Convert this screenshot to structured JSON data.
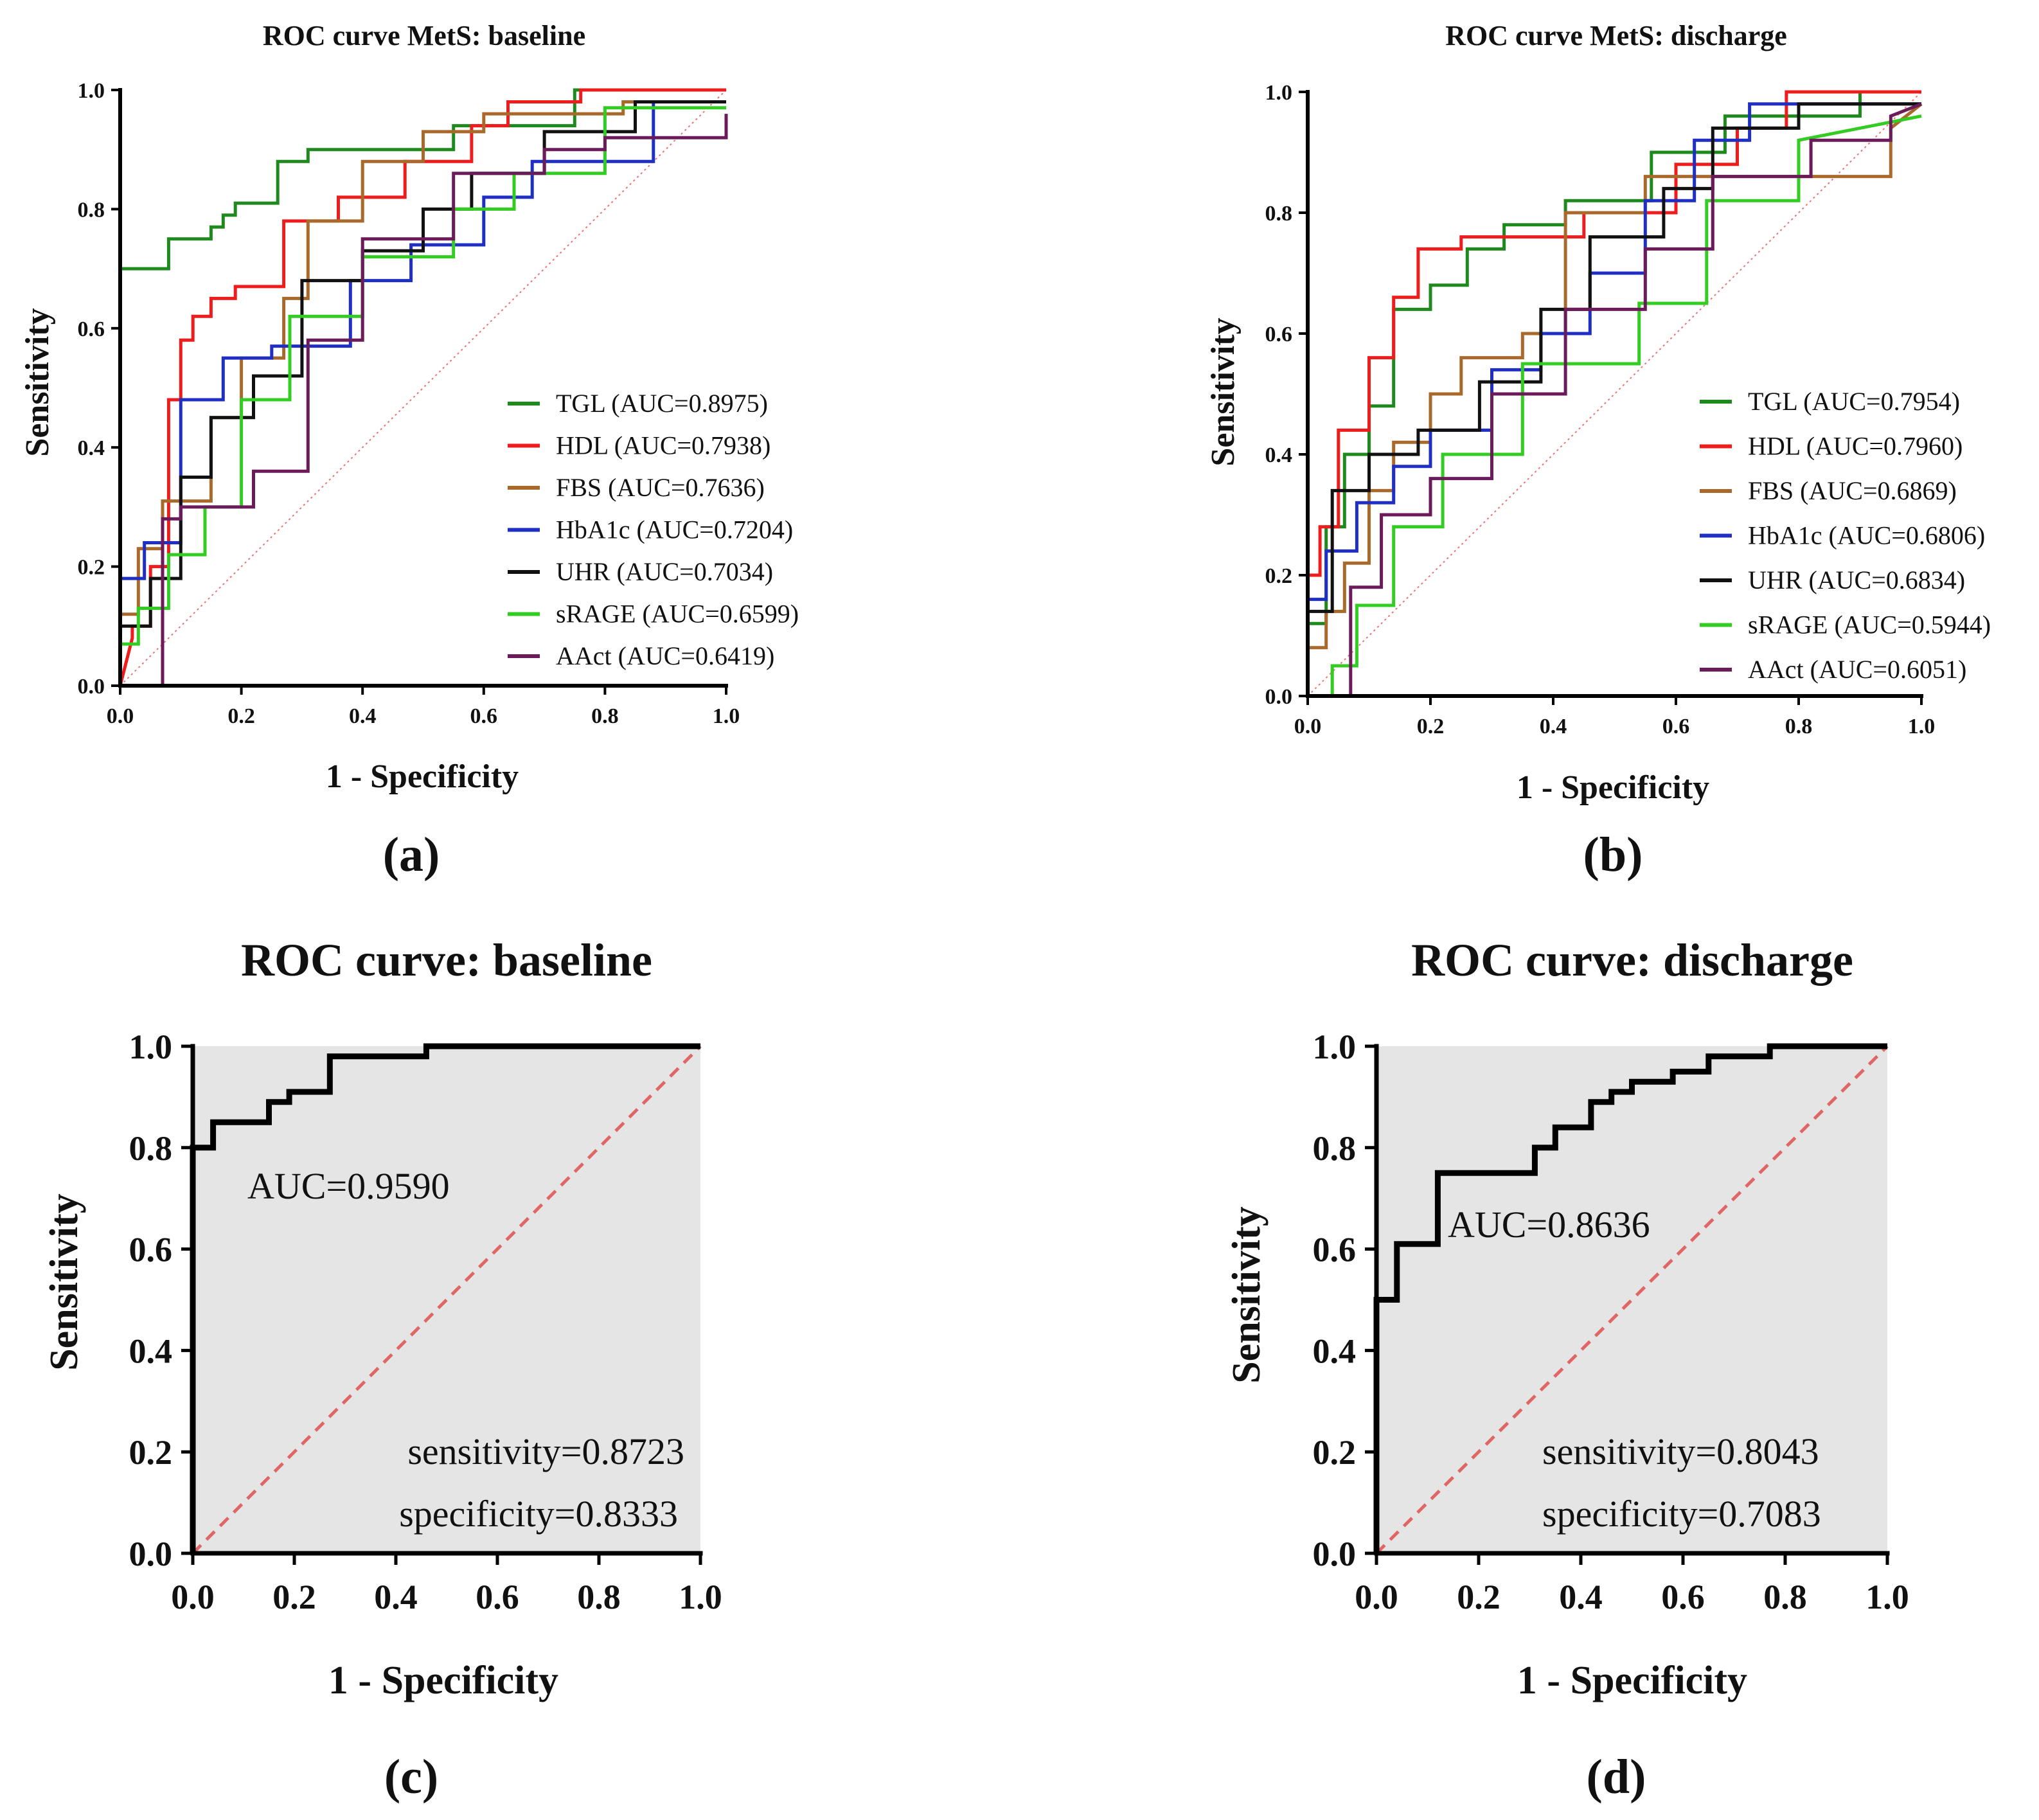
{
  "figure_letters": [
    "(a)",
    "(b)",
    "(c)",
    "(d)"
  ],
  "chart_data": [
    {
      "type": "line",
      "panel": "a",
      "title": "ROC curve MetS: baseline",
      "xlabel": "1 - Specificity",
      "ylabel": "Sensitivity",
      "xlim": [
        0,
        1
      ],
      "ylim": [
        0,
        1
      ],
      "xticks": [
        "0.0",
        "0.2",
        "0.4",
        "0.6",
        "0.8",
        "1.0"
      ],
      "yticks": [
        "0.0",
        "0.2",
        "0.4",
        "0.6",
        "0.8",
        "1.0"
      ],
      "diagonal_color": "#f07070",
      "legend_position": "right-center",
      "series": [
        {
          "name": "TGL (AUC=0.8975)",
          "color": "#1e8a1e",
          "x": [
            0,
            0,
            0,
            0.08,
            0.08,
            0.15,
            0.15,
            0.17,
            0.17,
            0.19,
            0.19,
            0.26,
            0.26,
            0.31,
            0.31,
            0.55,
            0.55,
            0.75,
            0.75,
            1.0
          ],
          "y": [
            0,
            0.7,
            0.7,
            0.7,
            0.75,
            0.75,
            0.77,
            0.77,
            0.79,
            0.79,
            0.81,
            0.81,
            0.88,
            0.88,
            0.9,
            0.9,
            0.94,
            0.94,
            1.0,
            1.0
          ]
        },
        {
          "name": "HDL (AUC=0.7938)",
          "color": "#ee1c1c",
          "x": [
            0,
            0.02,
            0.02,
            0.05,
            0.05,
            0.08,
            0.08,
            0.1,
            0.1,
            0.12,
            0.12,
            0.15,
            0.15,
            0.19,
            0.19,
            0.27,
            0.27,
            0.36,
            0.36,
            0.47,
            0.47,
            0.58,
            0.58,
            0.64,
            0.64,
            0.76,
            0.76,
            1.0
          ],
          "y": [
            0,
            0.08,
            0.1,
            0.1,
            0.2,
            0.2,
            0.48,
            0.48,
            0.58,
            0.58,
            0.62,
            0.62,
            0.65,
            0.65,
            0.67,
            0.67,
            0.78,
            0.78,
            0.82,
            0.82,
            0.88,
            0.88,
            0.94,
            0.94,
            0.98,
            0.98,
            1.0,
            1.0
          ]
        },
        {
          "name": "FBS (AUC=0.7636)",
          "color": "#a8692a",
          "x": [
            0,
            0,
            0.03,
            0.03,
            0.07,
            0.07,
            0.15,
            0.15,
            0.2,
            0.2,
            0.27,
            0.27,
            0.31,
            0.31,
            0.4,
            0.4,
            0.5,
            0.5,
            0.6,
            0.6,
            0.83,
            0.83,
            1.0
          ],
          "y": [
            0,
            0.12,
            0.12,
            0.23,
            0.23,
            0.31,
            0.31,
            0.45,
            0.45,
            0.55,
            0.55,
            0.65,
            0.65,
            0.78,
            0.78,
            0.88,
            0.88,
            0.93,
            0.93,
            0.96,
            0.96,
            0.98,
            0.98
          ]
        },
        {
          "name": "HbA1c (AUC=0.7204)",
          "color": "#1f2fc4",
          "x": [
            0,
            0,
            0.04,
            0.04,
            0.1,
            0.1,
            0.17,
            0.17,
            0.25,
            0.25,
            0.38,
            0.38,
            0.48,
            0.48,
            0.6,
            0.6,
            0.68,
            0.68,
            0.88,
            0.88,
            1.0
          ],
          "y": [
            0,
            0.18,
            0.18,
            0.24,
            0.24,
            0.48,
            0.48,
            0.55,
            0.55,
            0.57,
            0.57,
            0.68,
            0.68,
            0.74,
            0.74,
            0.82,
            0.82,
            0.88,
            0.88,
            0.98,
            0.98
          ]
        },
        {
          "name": "UHR (AUC=0.7034)",
          "color": "#111111",
          "x": [
            0,
            0,
            0.05,
            0.05,
            0.1,
            0.1,
            0.15,
            0.15,
            0.22,
            0.22,
            0.3,
            0.3,
            0.4,
            0.4,
            0.5,
            0.5,
            0.58,
            0.58,
            0.7,
            0.7,
            0.85,
            0.85,
            1.0
          ],
          "y": [
            0,
            0.1,
            0.1,
            0.18,
            0.18,
            0.35,
            0.35,
            0.45,
            0.45,
            0.52,
            0.52,
            0.68,
            0.68,
            0.73,
            0.73,
            0.8,
            0.8,
            0.86,
            0.86,
            0.93,
            0.93,
            0.98,
            0.98
          ]
        },
        {
          "name": "sRAGE (AUC=0.6599)",
          "color": "#33cc22",
          "x": [
            0,
            0,
            0.03,
            0.03,
            0.08,
            0.08,
            0.14,
            0.14,
            0.2,
            0.2,
            0.28,
            0.28,
            0.4,
            0.4,
            0.55,
            0.55,
            0.65,
            0.65,
            0.8,
            0.8,
            1.0
          ],
          "y": [
            0,
            0.07,
            0.07,
            0.13,
            0.13,
            0.22,
            0.22,
            0.3,
            0.3,
            0.48,
            0.48,
            0.62,
            0.62,
            0.72,
            0.72,
            0.8,
            0.8,
            0.86,
            0.86,
            0.97,
            0.97
          ]
        },
        {
          "name": "AAct (AUC=0.6419)",
          "color": "#6b1a5a",
          "x": [
            0.07,
            0.07,
            0.1,
            0.1,
            0.22,
            0.22,
            0.31,
            0.31,
            0.4,
            0.4,
            0.55,
            0.55,
            0.7,
            0.7,
            0.8,
            0.8,
            1.0,
            1.0
          ],
          "y": [
            0,
            0.28,
            0.28,
            0.3,
            0.3,
            0.36,
            0.36,
            0.58,
            0.58,
            0.75,
            0.75,
            0.86,
            0.86,
            0.9,
            0.9,
            0.92,
            0.92,
            0.96
          ]
        }
      ]
    },
    {
      "type": "line",
      "panel": "b",
      "title": "ROC curve MetS: discharge",
      "xlabel": "1 - Specificity",
      "ylabel": "Sensitivity",
      "xlim": [
        0,
        1
      ],
      "ylim": [
        0,
        1
      ],
      "xticks": [
        "0.0",
        "0.2",
        "0.4",
        "0.6",
        "0.8",
        "1.0"
      ],
      "yticks": [
        "0.0",
        "0.2",
        "0.4",
        "0.6",
        "0.8",
        "1.0"
      ],
      "diagonal_color": "#f07070",
      "legend_position": "right-center",
      "series": [
        {
          "name": "TGL (AUC=0.7954)",
          "color": "#1e8a1e",
          "x": [
            0,
            0,
            0.03,
            0.03,
            0.06,
            0.06,
            0.1,
            0.1,
            0.14,
            0.14,
            0.2,
            0.2,
            0.26,
            0.26,
            0.32,
            0.32,
            0.42,
            0.42,
            0.56,
            0.56,
            0.68,
            0.68,
            0.9,
            0.9,
            1.0
          ],
          "y": [
            0,
            0.12,
            0.12,
            0.28,
            0.28,
            0.4,
            0.4,
            0.48,
            0.48,
            0.64,
            0.64,
            0.68,
            0.68,
            0.74,
            0.74,
            0.78,
            0.78,
            0.82,
            0.82,
            0.9,
            0.9,
            0.96,
            0.96,
            1.0,
            1.0
          ]
        },
        {
          "name": "HDL (AUC=0.7960)",
          "color": "#ee1c1c",
          "x": [
            0,
            0,
            0.02,
            0.02,
            0.05,
            0.05,
            0.1,
            0.1,
            0.14,
            0.14,
            0.18,
            0.18,
            0.25,
            0.25,
            0.45,
            0.45,
            0.6,
            0.6,
            0.7,
            0.7,
            0.78,
            0.78,
            1.0
          ],
          "y": [
            0,
            0.2,
            0.2,
            0.28,
            0.28,
            0.44,
            0.44,
            0.56,
            0.56,
            0.66,
            0.66,
            0.74,
            0.74,
            0.76,
            0.76,
            0.8,
            0.8,
            0.88,
            0.88,
            0.94,
            0.94,
            1.0,
            1.0
          ]
        },
        {
          "name": "FBS (AUC=0.6869)",
          "color": "#a8692a",
          "x": [
            0,
            0,
            0.03,
            0.03,
            0.06,
            0.06,
            0.1,
            0.1,
            0.14,
            0.14,
            0.2,
            0.2,
            0.25,
            0.25,
            0.35,
            0.35,
            0.42,
            0.42,
            0.55,
            0.55,
            0.8,
            0.8,
            0.95,
            0.95,
            1.0
          ],
          "y": [
            0,
            0.08,
            0.08,
            0.14,
            0.14,
            0.22,
            0.22,
            0.34,
            0.34,
            0.42,
            0.42,
            0.5,
            0.5,
            0.56,
            0.56,
            0.6,
            0.6,
            0.8,
            0.8,
            0.86,
            0.86,
            0.86,
            0.86,
            0.94,
            0.98
          ]
        },
        {
          "name": "HbA1c (AUC=0.6806)",
          "color": "#1f2fc4",
          "x": [
            0,
            0,
            0.03,
            0.03,
            0.08,
            0.08,
            0.14,
            0.14,
            0.2,
            0.2,
            0.3,
            0.3,
            0.38,
            0.38,
            0.46,
            0.46,
            0.55,
            0.55,
            0.63,
            0.63,
            0.72,
            0.72,
            1.0
          ],
          "y": [
            0,
            0.16,
            0.16,
            0.24,
            0.24,
            0.32,
            0.32,
            0.38,
            0.38,
            0.44,
            0.44,
            0.54,
            0.54,
            0.6,
            0.6,
            0.7,
            0.7,
            0.82,
            0.82,
            0.92,
            0.92,
            0.98,
            0.98
          ]
        },
        {
          "name": "UHR (AUC=0.6834)",
          "color": "#111111",
          "x": [
            0,
            0,
            0.04,
            0.04,
            0.1,
            0.1,
            0.18,
            0.18,
            0.28,
            0.28,
            0.38,
            0.38,
            0.46,
            0.46,
            0.58,
            0.58,
            0.66,
            0.66,
            0.8,
            0.8,
            1.0
          ],
          "y": [
            0,
            0.14,
            0.14,
            0.34,
            0.34,
            0.4,
            0.4,
            0.44,
            0.44,
            0.52,
            0.52,
            0.64,
            0.64,
            0.76,
            0.76,
            0.84,
            0.84,
            0.94,
            0.94,
            0.98,
            0.98
          ]
        },
        {
          "name": "sRAGE (AUC=0.5944)",
          "color": "#33cc22",
          "x": [
            0,
            0,
            0.04,
            0.04,
            0.08,
            0.08,
            0.14,
            0.14,
            0.22,
            0.22,
            0.35,
            0.35,
            0.54,
            0.54,
            0.65,
            0.65,
            0.8,
            0.8,
            1.0
          ],
          "y": [
            0,
            0.0,
            0.0,
            0.05,
            0.05,
            0.15,
            0.15,
            0.28,
            0.28,
            0.4,
            0.4,
            0.55,
            0.55,
            0.65,
            0.65,
            0.82,
            0.82,
            0.92,
            0.96
          ]
        },
        {
          "name": "AAct (AUC=0.6051)",
          "color": "#6b1a5a",
          "x": [
            0.07,
            0.07,
            0.12,
            0.12,
            0.2,
            0.2,
            0.3,
            0.3,
            0.42,
            0.42,
            0.55,
            0.55,
            0.66,
            0.66,
            0.82,
            0.82,
            0.95,
            0.95,
            1.0
          ],
          "y": [
            0,
            0.18,
            0.18,
            0.3,
            0.3,
            0.36,
            0.36,
            0.5,
            0.5,
            0.64,
            0.64,
            0.74,
            0.74,
            0.86,
            0.86,
            0.92,
            0.92,
            0.96,
            0.98
          ]
        }
      ]
    },
    {
      "type": "line",
      "panel": "c",
      "title": "ROC curve:  baseline",
      "xlabel": "1 - Specificity",
      "ylabel": "Sensitivity",
      "xlim": [
        0,
        1
      ],
      "ylim": [
        0,
        1
      ],
      "xticks": [
        "0.0",
        "0.2",
        "0.4",
        "0.6",
        "0.8",
        "1.0"
      ],
      "yticks": [
        "0.0",
        "0.2",
        "0.4",
        "0.6",
        "0.8",
        "1.0"
      ],
      "fill_color": "#e5e5e5",
      "diagonal_color": "#e06666",
      "annotations": [
        "AUC=0.9590",
        "sensitivity=0.8723",
        "specificity=0.8333"
      ],
      "series": [
        {
          "name": "ROC",
          "color": "#000000",
          "x": [
            0,
            0,
            0.04,
            0.04,
            0.15,
            0.15,
            0.19,
            0.19,
            0.27,
            0.27,
            0.46,
            0.46,
            1.0
          ],
          "y": [
            0,
            0.8,
            0.8,
            0.85,
            0.85,
            0.89,
            0.89,
            0.91,
            0.91,
            0.98,
            0.98,
            1.0,
            1.0
          ]
        }
      ]
    },
    {
      "type": "line",
      "panel": "d",
      "title": "ROC curve:  discharge",
      "xlabel": "1 - Specificity",
      "ylabel": "Sensitivity",
      "xlim": [
        0,
        1
      ],
      "ylim": [
        0,
        1
      ],
      "xticks": [
        "0.0",
        "0.2",
        "0.4",
        "0.6",
        "0.8",
        "1.0"
      ],
      "yticks": [
        "0.0",
        "0.2",
        "0.4",
        "0.6",
        "0.8",
        "1.0"
      ],
      "fill_color": "#e5e5e5",
      "diagonal_color": "#e06666",
      "annotations": [
        "AUC=0.8636",
        "sensitivity=0.8043",
        "specificity=0.7083"
      ],
      "series": [
        {
          "name": "ROC",
          "color": "#000000",
          "x": [
            0,
            0,
            0.04,
            0.04,
            0.12,
            0.12,
            0.31,
            0.31,
            0.35,
            0.35,
            0.42,
            0.42,
            0.46,
            0.46,
            0.5,
            0.5,
            0.58,
            0.58,
            0.65,
            0.65,
            0.77,
            0.77,
            1.0
          ],
          "y": [
            0,
            0.5,
            0.5,
            0.61,
            0.61,
            0.75,
            0.75,
            0.8,
            0.8,
            0.84,
            0.84,
            0.89,
            0.89,
            0.91,
            0.91,
            0.93,
            0.93,
            0.95,
            0.95,
            0.98,
            0.98,
            1.0,
            1.0
          ]
        }
      ]
    }
  ]
}
